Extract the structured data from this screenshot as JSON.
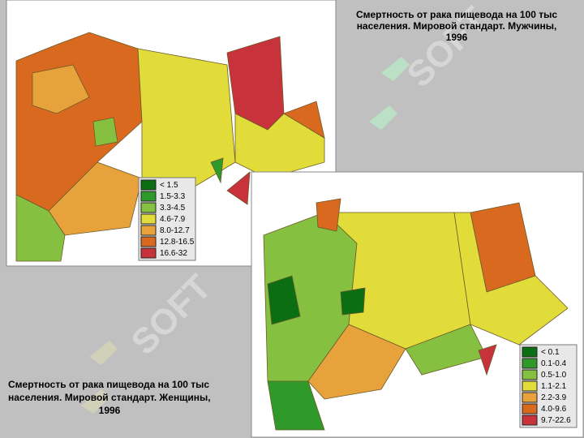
{
  "watermark": "SOFT",
  "maps": [
    {
      "title": [
        "Смертность от рака пищевода на 100 тыс",
        "населения. Мировой стандарт. Мужчины,",
        "1996"
      ],
      "legend": [
        {
          "label": "< 1.5",
          "color": "#0b6e12"
        },
        {
          "label": "1.5-3.3",
          "color": "#2f9a2a"
        },
        {
          "label": "3.3-4.5",
          "color": "#86c040"
        },
        {
          "label": "4.6-7.9",
          "color": "#e2dc3a"
        },
        {
          "label": "8.0-12.7",
          "color": "#e8a23c"
        },
        {
          "label": "12.8-16.5",
          "color": "#d8691e"
        },
        {
          "label": "16.6-32",
          "color": "#c8323a"
        }
      ]
    },
    {
      "title": [
        "Смертность от рака пищевода на 100 тыс",
        "населения. Мировой стандарт. Женщины,",
        "1996"
      ],
      "legend": [
        {
          "label": "< 0.1",
          "color": "#0b6e12"
        },
        {
          "label": "0.1-0.4",
          "color": "#2f9a2a"
        },
        {
          "label": "0.5-1.0",
          "color": "#86c040"
        },
        {
          "label": "1.1-2.1",
          "color": "#e2dc3a"
        },
        {
          "label": "2.2-3.9",
          "color": "#e8a23c"
        },
        {
          "label": "4.0-9.6",
          "color": "#d8691e"
        },
        {
          "label": "9.7-22.6",
          "color": "#c8323a"
        }
      ]
    }
  ]
}
